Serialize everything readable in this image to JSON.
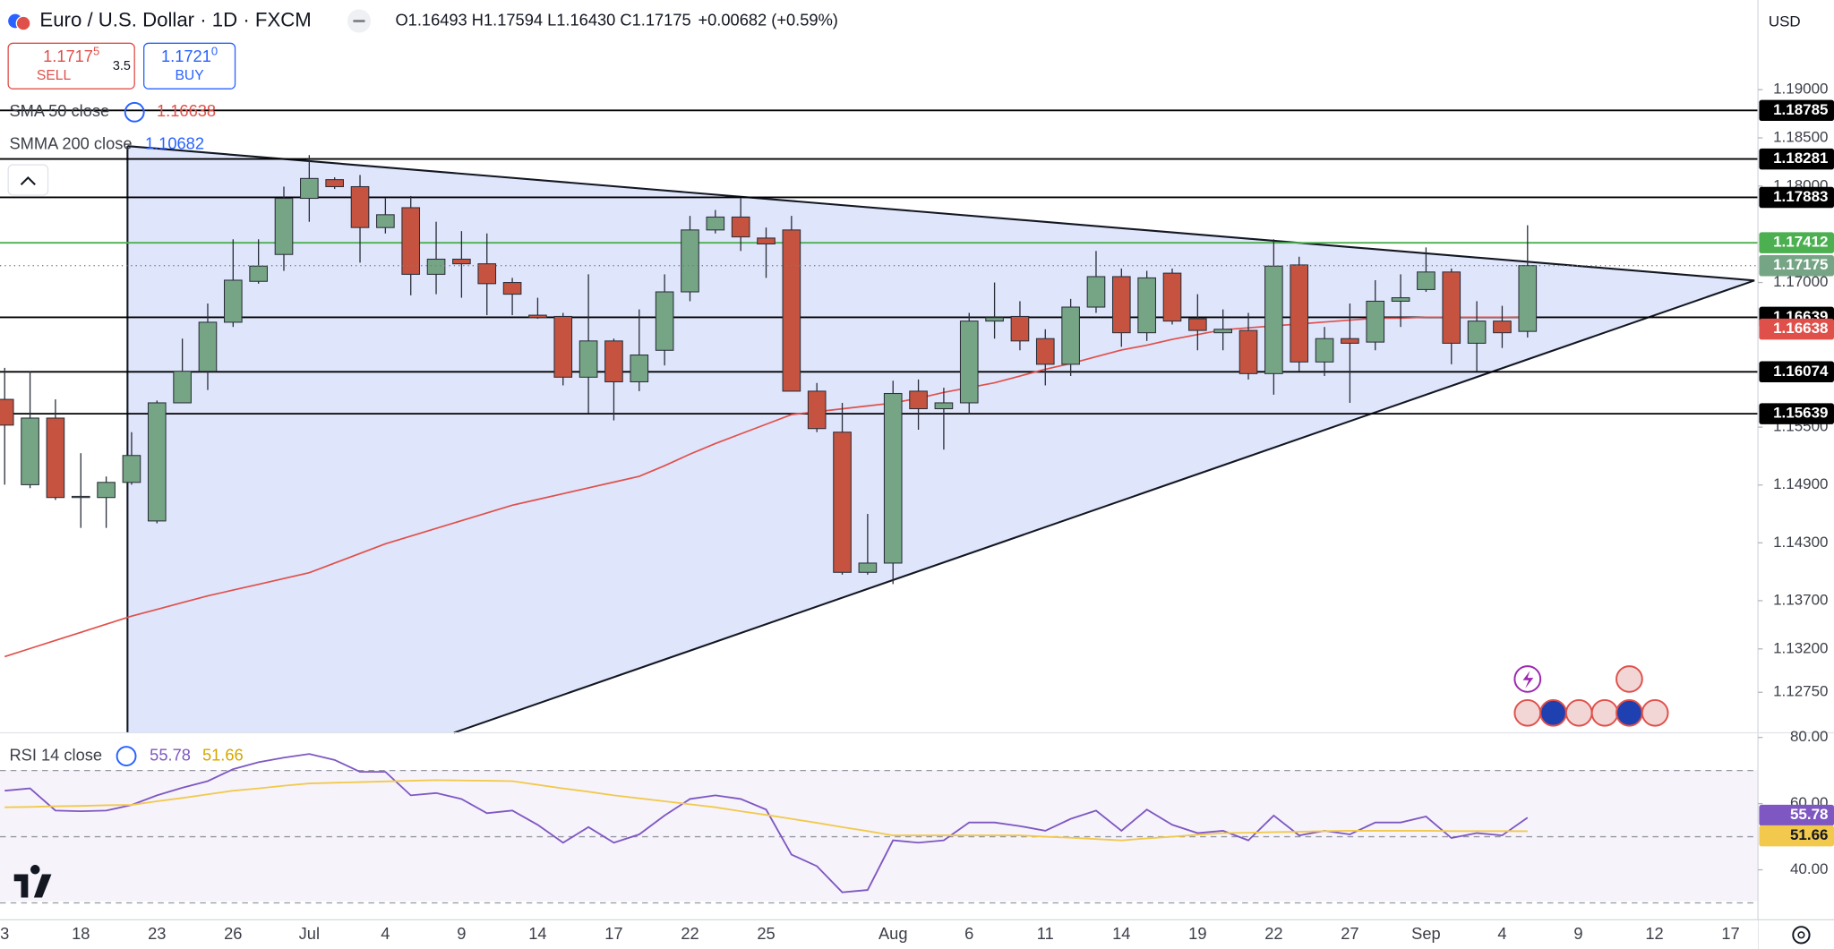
{
  "header": {
    "symbol": "Euro / U.S. Dollar · 1D · FXCM",
    "ohlc": "O1.16493 H1.17594 L1.16430 C1.17175",
    "change": "+0.00682 (+0.59%)"
  },
  "trade": {
    "sell_price": "1.1717",
    "sell_pip": "5",
    "sell": "SELL",
    "spread": "3.5",
    "buy_price": "1.1721",
    "buy_pip": "0",
    "buy": "BUY"
  },
  "currency": "USD",
  "chart_data": {
    "type": "candlestick",
    "categories": [
      "3",
      null,
      null,
      "18",
      null,
      null,
      "23",
      null,
      null,
      "26",
      null,
      null,
      "Jul",
      null,
      null,
      "4",
      null,
      null,
      "9",
      null,
      null,
      "14",
      null,
      null,
      "17",
      null,
      null,
      "22",
      null,
      null,
      "25",
      null,
      null,
      null,
      null,
      "Aug",
      null,
      null,
      "6",
      null,
      null,
      "11",
      null,
      null,
      "14",
      null,
      null,
      "19",
      null,
      null,
      "22",
      null,
      null,
      "27",
      null,
      null,
      "Sep",
      null,
      null,
      "4",
      null,
      null,
      "9",
      null,
      null,
      "12",
      null,
      null,
      "17"
    ],
    "open": [
      1.15788,
      1.14903,
      1.15594,
      1.1477,
      1.1477,
      1.14927,
      1.14527,
      1.15752,
      1.16079,
      1.16588,
      1.17012,
      1.17291,
      1.17873,
      1.18067,
      1.17994,
      1.1757,
      1.17776,
      1.17085,
      1.17242,
      1.17194,
      1.17,
      1.16661,
      1.16648,
      1.16018,
      1.16394,
      1.1597,
      1.16297,
      1.16903,
      1.17545,
      1.17679,
      1.17461,
      1.17545,
      1.15873,
      1.15448,
      1.13994,
      1.1409,
      1.15873,
      1.15691,
      1.15752,
      1.166,
      1.16648,
      1.16418,
      1.16152,
      1.16745,
      1.17061,
      1.16479,
      1.17097,
      1.16624,
      1.16479,
      1.16503,
      1.16055,
      1.17182,
      1.16176,
      1.16418,
      1.16382,
      1.16806,
      1.16927,
      1.17109,
      1.1637,
      1.166,
      1.16493,
      null,
      null,
      null,
      null,
      null,
      null,
      null,
      null
    ],
    "high": [
      1.16115,
      1.16079,
      1.15788,
      1.1523,
      1.14988,
      1.15448,
      1.15776,
      1.16418,
      1.16782,
      1.17448,
      1.17448,
      1.17994,
      1.18321,
      1.18091,
      1.18115,
      1.17873,
      1.17897,
      1.1763,
      1.17533,
      1.17509,
      1.17048,
      1.16842,
      1.16685,
      1.17085,
      1.16418,
      1.16721,
      1.17085,
      1.17691,
      1.17752,
      1.17873,
      1.1757,
      1.17691,
      1.15958,
      1.15752,
      1.146,
      1.15982,
      1.15994,
      1.15909,
      1.16685,
      1.17,
      1.16806,
      1.16515,
      1.1683,
      1.17327,
      1.17145,
      1.17121,
      1.17145,
      1.16879,
      1.16721,
      1.16685,
      1.17448,
      1.17267,
      1.16539,
      1.16782,
      1.17024,
      1.17085,
      1.17364,
      1.17145,
      1.16806,
      1.16758,
      1.17594,
      null,
      null,
      null,
      null,
      null,
      null,
      null,
      null
    ],
    "low": [
      1.14903,
      1.14867,
      1.14745,
      1.14455,
      1.14455,
      1.14903,
      1.14503,
      1.15752,
      1.15885,
      1.16539,
      1.16988,
      1.17121,
      1.1763,
      1.1797,
      1.17206,
      1.17509,
      1.16867,
      1.16879,
      1.16842,
      1.16661,
      1.16661,
      1.16624,
      1.15933,
      1.15642,
      1.1557,
      1.15873,
      1.1614,
      1.16806,
      1.17509,
      1.17327,
      1.17048,
      1.15873,
      1.15448,
      1.1397,
      1.1397,
      1.13873,
      1.15473,
      1.15267,
      1.1563,
      1.16418,
      1.16297,
      1.15933,
      1.1603,
      1.16685,
      1.16333,
      1.16394,
      1.16564,
      1.16297,
      1.16297,
      1.15994,
      1.15836,
      1.16079,
      1.1603,
      1.15752,
      1.16297,
      1.16539,
      1.16903,
      1.16152,
      1.16079,
      1.16321,
      1.1643,
      null,
      null,
      null,
      null,
      null,
      null,
      null,
      null
    ],
    "close": [
      1.15521,
      1.15594,
      1.1477,
      1.14782,
      1.14927,
      1.15206,
      1.15752,
      1.16079,
      1.16588,
      1.17024,
      1.1717,
      1.17873,
      1.18079,
      1.17994,
      1.1757,
      1.17703,
      1.17085,
      1.17242,
      1.17194,
      1.16988,
      1.16879,
      1.16636,
      1.16018,
      1.16394,
      1.1597,
      1.16248,
      1.16903,
      1.17545,
      1.17679,
      1.17473,
      1.174,
      1.15873,
      1.15485,
      1.13994,
      1.1409,
      1.15849,
      1.15691,
      1.15752,
      1.166,
      1.16636,
      1.16394,
      1.16152,
      1.16745,
      1.17061,
      1.16479,
      1.17048,
      1.166,
      1.16503,
      1.16515,
      1.16055,
      1.1717,
      1.16176,
      1.16418,
      1.1637,
      1.16806,
      1.16842,
      1.17109,
      1.1637,
      1.166,
      1.16479,
      1.17175,
      null,
      null,
      null,
      null,
      null,
      null,
      null,
      null
    ],
    "up_color": "#76a585",
    "down_color": "#c5533f",
    "ylim": [
      1.1233,
      1.1993
    ],
    "yticks": [
      {
        "value": 1.19,
        "label": "1.19000"
      },
      {
        "value": 1.185,
        "label": "1.18500"
      },
      {
        "value": 1.18,
        "label": "1.18000"
      },
      {
        "value": 1.17,
        "label": "1.17000"
      },
      {
        "value": 1.155,
        "label": "1.15500"
      },
      {
        "value": 1.149,
        "label": "1.14900"
      },
      {
        "value": 1.143,
        "label": "1.14300"
      },
      {
        "value": 1.137,
        "label": "1.13700"
      },
      {
        "value": 1.132,
        "label": "1.13200"
      },
      {
        "value": 1.1275,
        "label": "1.12750"
      }
    ],
    "levels": [
      {
        "value": 1.18785,
        "color": "#000000"
      },
      {
        "value": 1.18281,
        "color": "#000000"
      },
      {
        "value": 1.17883,
        "color": "#000000"
      },
      {
        "value": 1.17412,
        "color": "#4caf50"
      },
      {
        "value": 1.16639,
        "color": "#000000"
      },
      {
        "value": 1.16074,
        "color": "#000000"
      },
      {
        "value": 1.15639,
        "color": "#000000"
      }
    ],
    "indicators": [
      {
        "name": "SMA 50 close",
        "color": "#e0504a",
        "values": [
          1.1312,
          1.13204,
          1.13288,
          1.13372,
          1.13456,
          1.1354,
          1.1361,
          1.1368,
          1.1375,
          1.1381,
          1.1387,
          1.1393,
          1.1399,
          1.1409,
          1.1419,
          1.1429,
          1.1437,
          1.1445,
          1.1453,
          1.1461,
          1.1469,
          1.1475,
          1.1481,
          1.1487,
          1.1493,
          1.1499,
          1.151,
          1.1522,
          1.1533,
          1.1543,
          1.1553,
          1.1563,
          1.1566,
          1.1569,
          1.1572,
          1.1575,
          1.158,
          1.1586,
          1.1591,
          1.1596,
          1.1603,
          1.161,
          1.1616,
          1.1623,
          1.163,
          1.1635,
          1.1641,
          1.1646,
          1.1651,
          1.1653,
          1.1655,
          1.1657,
          1.1659,
          1.1661,
          1.1663,
          1.1663,
          1.1664,
          1.1664,
          1.1664,
          1.1664,
          1.16638,
          null,
          null,
          null,
          null,
          null,
          null,
          null,
          null
        ]
      },
      {
        "name": "SMMA 200 close",
        "color": "#2962ff",
        "value": 1.10682
      }
    ],
    "rsi": {
      "type": "line",
      "name": "RSI 14 close",
      "ylim": [
        24.9,
        81.4
      ],
      "yticks": [
        {
          "value": 80,
          "label": "80.00"
        },
        {
          "value": 60,
          "label": "60.00"
        },
        {
          "value": 40,
          "label": "40.00"
        }
      ],
      "bands": [
        70,
        50,
        30
      ],
      "series": [
        {
          "color": "#7e57c2",
          "values": [
            63.9,
            64.6,
            57.9,
            57.7,
            57.9,
            59.6,
            62.5,
            64.8,
            66.8,
            70.4,
            72.5,
            73.9,
            75,
            73.2,
            69.6,
            69.6,
            62.5,
            63.2,
            61.4,
            57.1,
            57.9,
            53.6,
            48.2,
            52.9,
            48.2,
            50.7,
            56.4,
            61.4,
            62.5,
            61.4,
            58.2,
            44.6,
            41.1,
            33.2,
            33.9,
            48.9,
            48.2,
            48.9,
            54.3,
            54.3,
            53.2,
            51.8,
            55.4,
            57.9,
            51.8,
            58.2,
            53.6,
            51.1,
            51.8,
            48.9,
            56.4,
            50.4,
            51.8,
            50.7,
            54.3,
            54.3,
            56.1,
            49.6,
            51.1,
            50.4,
            55.78,
            null,
            null,
            null,
            null,
            null,
            null,
            null,
            null
          ]
        },
        {
          "color": "#f2c94c",
          "values": [
            58.9,
            59,
            59.2,
            59.3,
            59.5,
            59.6,
            60.7,
            61.7,
            62.8,
            63.9,
            64.6,
            65.4,
            66.1,
            66.3,
            66.5,
            66.7,
            66.9,
            67.1,
            67,
            66.9,
            66.8,
            65.7,
            64.6,
            63.6,
            62.5,
            61.6,
            60.7,
            59.8,
            58.9,
            57.7,
            56.6,
            55.4,
            54.2,
            52.9,
            51.7,
            50.4,
            50.4,
            50.4,
            50.4,
            50.4,
            50.4,
            50,
            49.7,
            49.3,
            48.9,
            49.5,
            50,
            50.6,
            51.1,
            51.2,
            51.4,
            51.5,
            51.7,
            51.8,
            51.8,
            51.8,
            51.8,
            51.7,
            51.7,
            51.7,
            51.66,
            null,
            null,
            null,
            null,
            null,
            null,
            null,
            null
          ]
        }
      ]
    }
  }
}
